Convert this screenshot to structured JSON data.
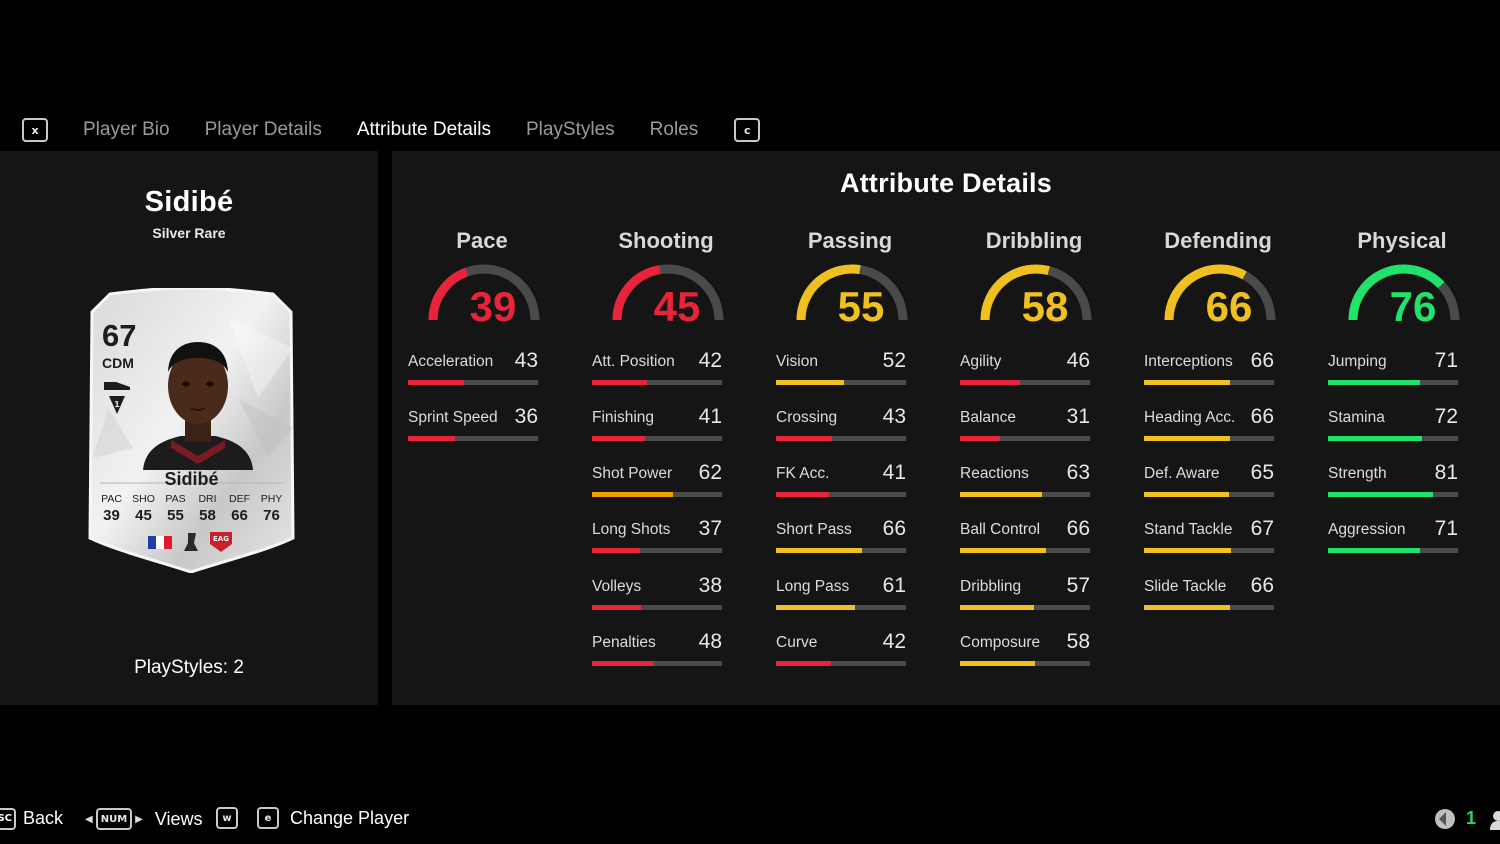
{
  "tabs": {
    "left_key": "x",
    "right_key": "c",
    "items": [
      "Player Bio",
      "Player Details",
      "Attribute Details",
      "PlayStyles",
      "Roles"
    ],
    "active": "Attribute Details"
  },
  "player": {
    "name": "Sidibé",
    "rarity": "Silver Rare",
    "playstyles": "PlayStyles: 2"
  },
  "card": {
    "rating": "67",
    "position": "CDM",
    "name": "Sidibé",
    "stats": [
      {
        "label": "PAC",
        "value": "39"
      },
      {
        "label": "SHO",
        "value": "45"
      },
      {
        "label": "PAS",
        "value": "55"
      },
      {
        "label": "DRI",
        "value": "58"
      },
      {
        "label": "DEF",
        "value": "66"
      },
      {
        "label": "PHY",
        "value": "76"
      }
    ],
    "club_badge_text": "EAG",
    "icons": [
      "france-flag-icon",
      "league-logo-icon",
      "club-badge-icon",
      "boot-icon",
      "chemistry-style-icon"
    ]
  },
  "panel": {
    "title": "Attribute Details"
  },
  "colors": {
    "red": "#e8243a",
    "orange": "#f2a000",
    "yellow": "#f0c020",
    "green": "#1fe36a",
    "track": "#4a4a4a"
  },
  "categories": [
    {
      "name": "Pace",
      "value": 39,
      "color": "#e8243a",
      "attributes": [
        {
          "name": "Acceleration",
          "value": 43,
          "color": "#e8243a"
        },
        {
          "name": "Sprint Speed",
          "value": 36,
          "color": "#e8243a"
        }
      ]
    },
    {
      "name": "Shooting",
      "value": 45,
      "color": "#e8243a",
      "attributes": [
        {
          "name": "Att. Position",
          "value": 42,
          "color": "#e8243a"
        },
        {
          "name": "Finishing",
          "value": 41,
          "color": "#e8243a"
        },
        {
          "name": "Shot Power",
          "value": 62,
          "color": "#f2a000"
        },
        {
          "name": "Long Shots",
          "value": 37,
          "color": "#e8243a"
        },
        {
          "name": "Volleys",
          "value": 38,
          "color": "#e8243a"
        },
        {
          "name": "Penalties",
          "value": 48,
          "color": "#e8243a"
        }
      ]
    },
    {
      "name": "Passing",
      "value": 55,
      "color": "#f0c020",
      "attributes": [
        {
          "name": "Vision",
          "value": 52,
          "color": "#f0c020"
        },
        {
          "name": "Crossing",
          "value": 43,
          "color": "#e8243a"
        },
        {
          "name": "FK Acc.",
          "value": 41,
          "color": "#e8243a"
        },
        {
          "name": "Short Pass",
          "value": 66,
          "color": "#f0c020"
        },
        {
          "name": "Long Pass",
          "value": 61,
          "color": "#f0c020"
        },
        {
          "name": "Curve",
          "value": 42,
          "color": "#e8243a"
        }
      ]
    },
    {
      "name": "Dribbling",
      "value": 58,
      "color": "#f0c020",
      "attributes": [
        {
          "name": "Agility",
          "value": 46,
          "color": "#e8243a"
        },
        {
          "name": "Balance",
          "value": 31,
          "color": "#e8243a"
        },
        {
          "name": "Reactions",
          "value": 63,
          "color": "#f0c020"
        },
        {
          "name": "Ball Control",
          "value": 66,
          "color": "#f0c020"
        },
        {
          "name": "Dribbling",
          "value": 57,
          "color": "#f0c020"
        },
        {
          "name": "Composure",
          "value": 58,
          "color": "#f0c020"
        }
      ]
    },
    {
      "name": "Defending",
      "value": 66,
      "color": "#f0c020",
      "attributes": [
        {
          "name": "Interceptions",
          "value": 66,
          "color": "#f0c020"
        },
        {
          "name": "Heading Acc.",
          "value": 66,
          "color": "#f0c020"
        },
        {
          "name": "Def. Aware",
          "value": 65,
          "color": "#f0c020"
        },
        {
          "name": "Stand Tackle",
          "value": 67,
          "color": "#f0c020"
        },
        {
          "name": "Slide Tackle",
          "value": 66,
          "color": "#f0c020"
        }
      ]
    },
    {
      "name": "Physical",
      "value": 76,
      "color": "#1fe36a",
      "attributes": [
        {
          "name": "Jumping",
          "value": 71,
          "color": "#1fe36a"
        },
        {
          "name": "Stamina",
          "value": 72,
          "color": "#1fe36a"
        },
        {
          "name": "Strength",
          "value": 81,
          "color": "#1fe36a"
        },
        {
          "name": "Aggression",
          "value": 71,
          "color": "#1fe36a"
        }
      ]
    }
  ],
  "footer": {
    "back_key": "SC",
    "back_label": "Back",
    "views_key": "NUM",
    "views_label": "Views",
    "w_key": "w",
    "e_key": "e",
    "change_label": "Change Player",
    "count": "1"
  }
}
